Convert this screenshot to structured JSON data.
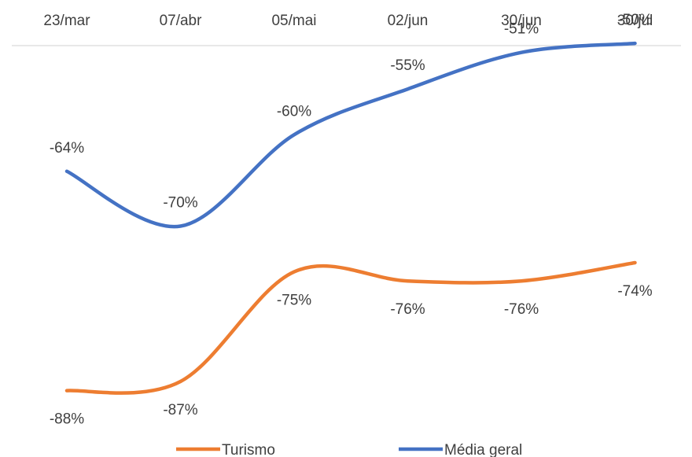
{
  "chart_data": {
    "type": "line",
    "title": "",
    "xlabel": "",
    "ylabel": "",
    "categories": [
      "23/mar",
      "07/abr",
      "05/mai",
      "02/jun",
      "30/jun",
      "30/jul"
    ],
    "ylim": [
      -95,
      -45
    ],
    "grid": false,
    "x_axis_position": "top",
    "legend_position": "bottom",
    "series": [
      {
        "name": "Turismo",
        "color": "#ED7D31",
        "values": [
          -88,
          -87,
          -75,
          -76,
          -76,
          -74
        ],
        "labels": [
          "-88%",
          "-87%",
          "-75%",
          "-76%",
          "-76%",
          "-74%"
        ],
        "label_position": "below"
      },
      {
        "name": "Média geral",
        "color": "#4472C4",
        "values": [
          -64,
          -70,
          -60,
          -55,
          -51,
          -50
        ],
        "labels": [
          "-64%",
          "-70%",
          "-60%",
          "-55%",
          "-51%",
          "-50%"
        ],
        "label_position": "above"
      }
    ]
  }
}
